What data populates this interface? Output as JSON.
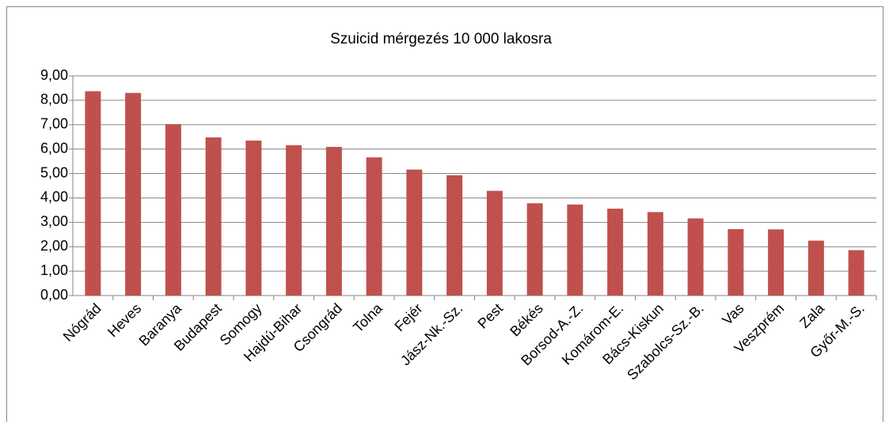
{
  "chart_data": {
    "type": "bar",
    "title": "Szuicid mérgezés 10 000 lakosra",
    "categories": [
      "Nógrád",
      "Heves",
      "Baranya",
      "Budapest",
      "Somogy",
      "Hajdú-Bihar",
      "Csongrád",
      "Tolna",
      "Fejér",
      "Jász-Nk.-Sz.",
      "Pest",
      "Békés",
      "Borsod-A.-Z.",
      "Komárom-E.",
      "Bács-Kiskun",
      "Szabolcs-Sz.-B.",
      "Vas",
      "Veszprém",
      "Zala",
      "Győr-M.-S."
    ],
    "values": [
      8.37,
      8.3,
      7.02,
      6.48,
      6.35,
      6.16,
      6.09,
      5.66,
      5.16,
      4.93,
      4.29,
      3.78,
      3.73,
      3.56,
      3.42,
      3.16,
      2.72,
      2.71,
      2.25,
      1.86
    ],
    "color": "#c0504d",
    "ylim": [
      0,
      9
    ],
    "yticks": [
      {
        "value": 0,
        "label": "0,00"
      },
      {
        "value": 1,
        "label": "1,00"
      },
      {
        "value": 2,
        "label": "2,00"
      },
      {
        "value": 3,
        "label": "3,00"
      },
      {
        "value": 4,
        "label": "4,00"
      },
      {
        "value": 5,
        "label": "5,00"
      },
      {
        "value": 6,
        "label": "6,00"
      },
      {
        "value": 7,
        "label": "7,00"
      },
      {
        "value": 8,
        "label": "8,00"
      },
      {
        "value": 9,
        "label": "9,00"
      }
    ],
    "grid": true
  }
}
